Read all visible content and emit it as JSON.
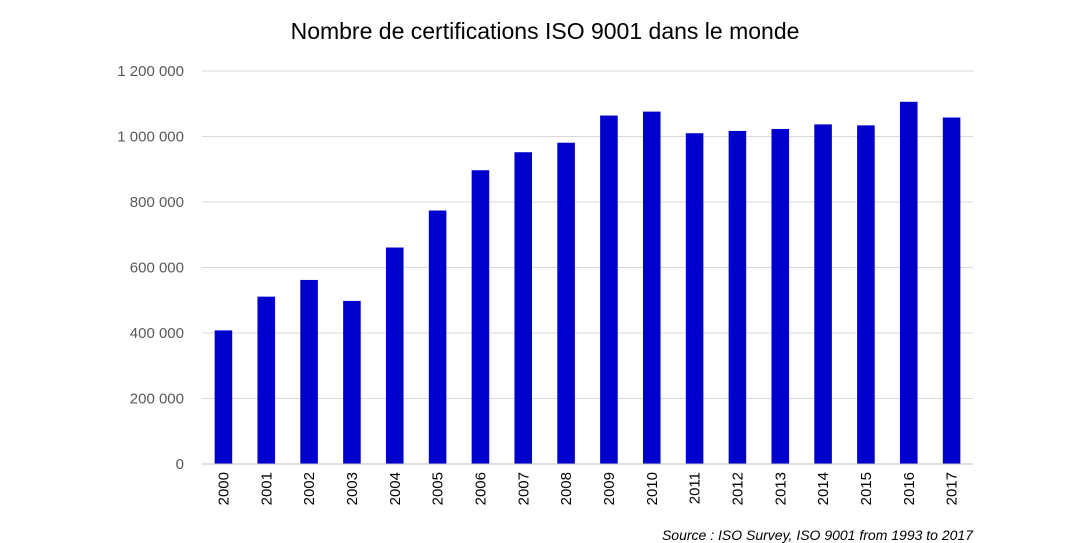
{
  "chart_data": {
    "type": "bar",
    "title": "Nombre de certifications ISO 9001 dans le monde",
    "xlabel": "",
    "ylabel": "",
    "categories": [
      "2000",
      "2001",
      "2002",
      "2003",
      "2004",
      "2005",
      "2006",
      "2007",
      "2008",
      "2009",
      "2010",
      "2011",
      "2012",
      "2013",
      "2014",
      "2015",
      "2016",
      "2017"
    ],
    "values": [
      408000,
      511000,
      562000,
      498000,
      661000,
      774000,
      897000,
      952000,
      981000,
      1064000,
      1076000,
      1010000,
      1017000,
      1023000,
      1037000,
      1034000,
      1106000,
      1058000
    ],
    "ylim": [
      0,
      1200000
    ],
    "yticks": [
      0,
      200000,
      400000,
      600000,
      800000,
      1000000,
      1200000
    ],
    "ytick_labels": [
      "0",
      "200 000",
      "400 000",
      "600 000",
      "800 000",
      "1 000 000",
      "1 200 000"
    ],
    "bar_color": "#0000cc",
    "grid": true,
    "legend": "none",
    "source": "Source : ISO Survey, ISO 9001 from 1993 to 2017"
  }
}
